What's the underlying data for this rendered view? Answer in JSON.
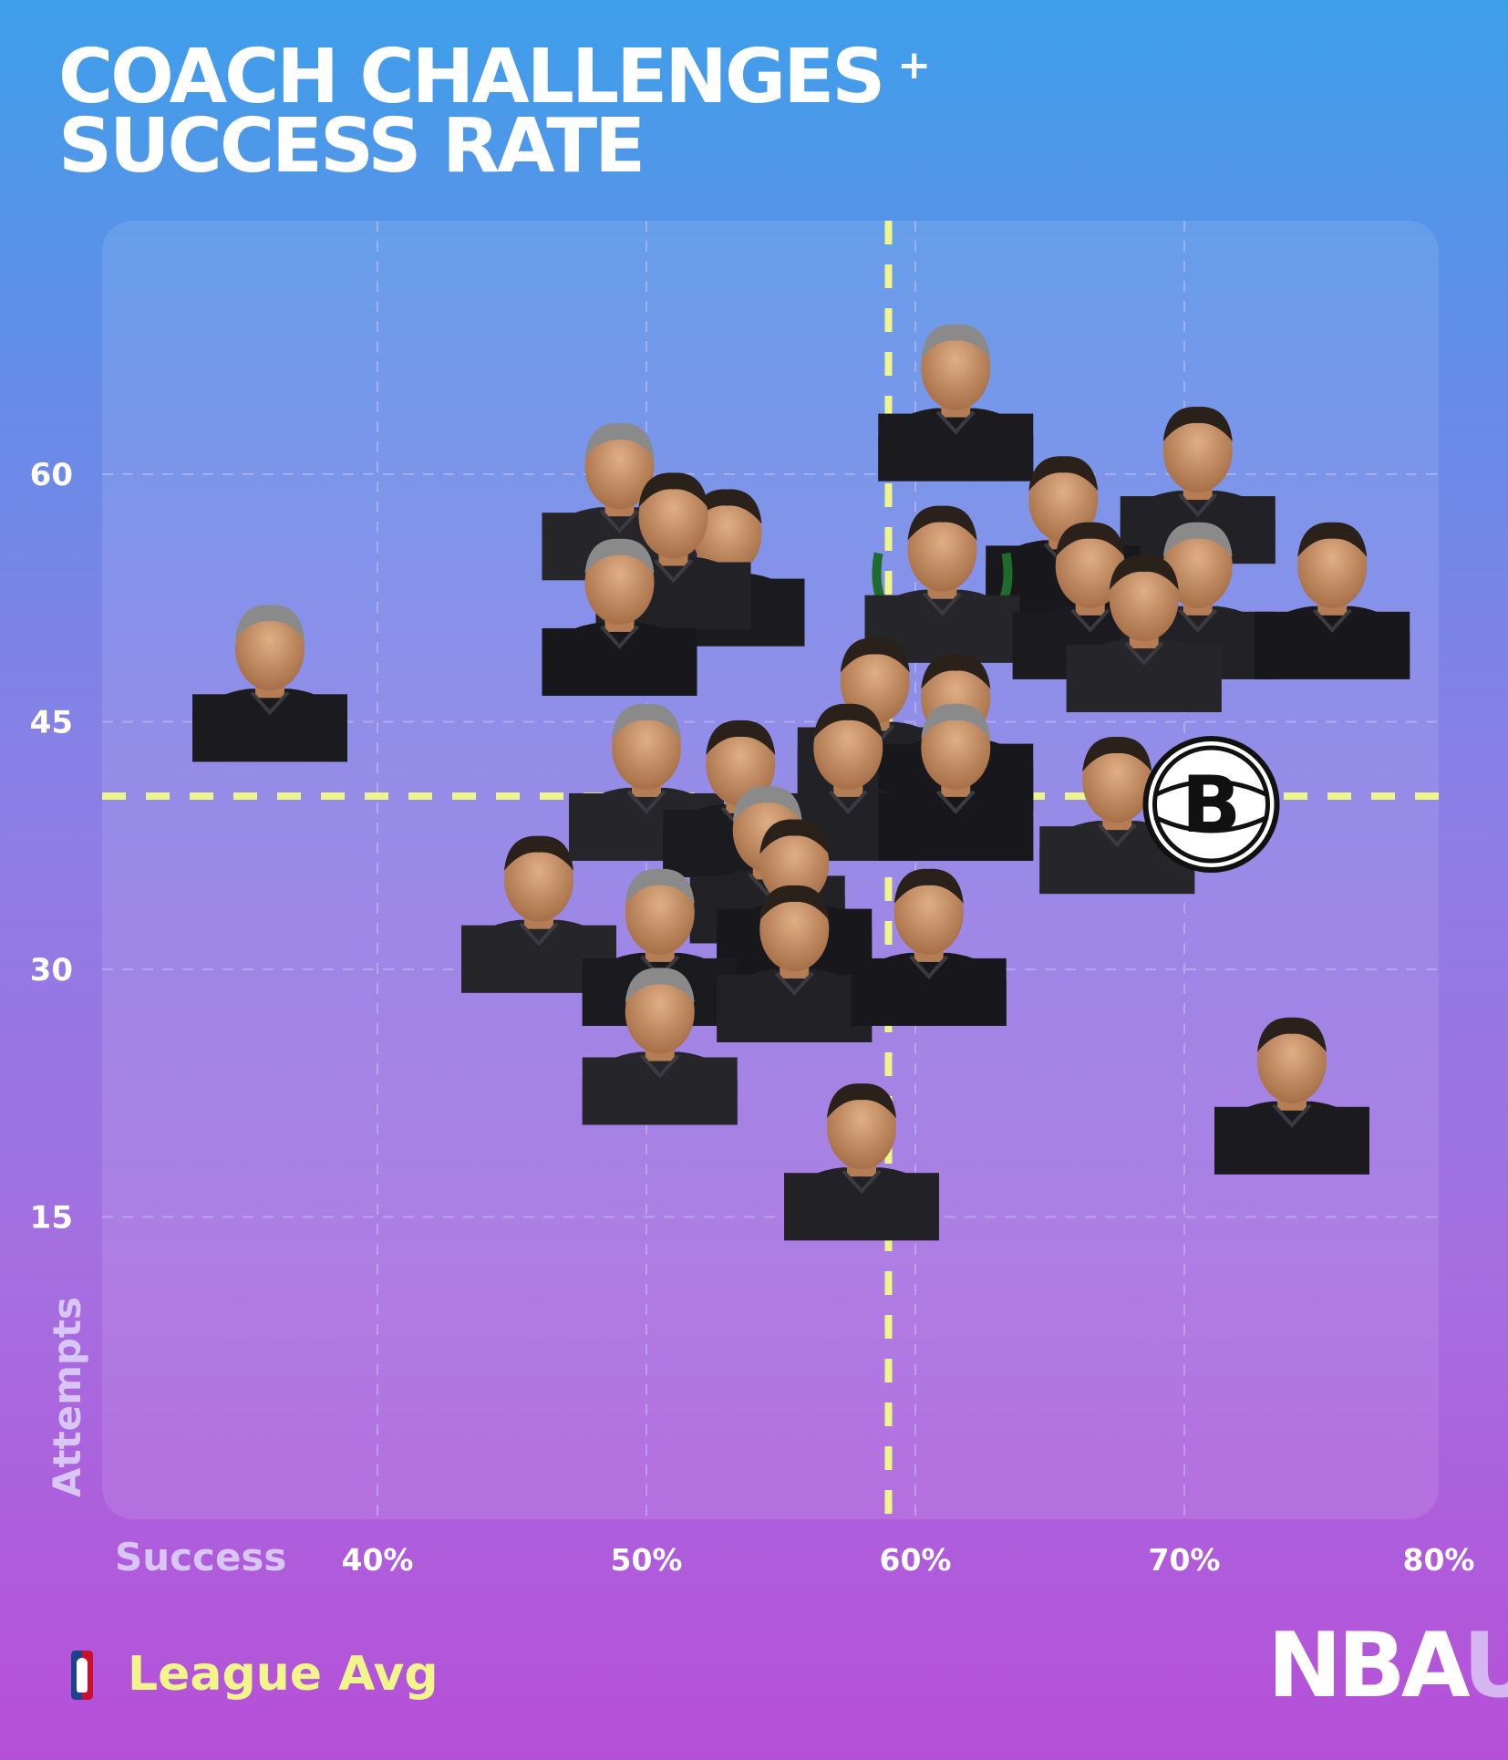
{
  "title": {
    "line1": "COACH CHALLENGES",
    "plus": "+",
    "line2": "SUCCESS RATE"
  },
  "footer": {
    "league_avg_label": "League Avg",
    "brand_main": "NBA",
    "brand_accent": "U"
  },
  "colors": {
    "league_avg_line": "#eef58a",
    "grid": "#c9c2f2",
    "text": "#ffffff",
    "axis_label": "#d8c6f5"
  },
  "chart_data": {
    "type": "scatter",
    "title": "COACH CHALLENGES + SUCCESS RATE",
    "xlabel": "Success",
    "ylabel": "Attempts",
    "x_ticks": [
      "40%",
      "50%",
      "60%",
      "70%",
      "80%"
    ],
    "x_tick_values": [
      0.4,
      0.5,
      0.6,
      0.7,
      0.8
    ],
    "y_ticks": [
      "60",
      "45",
      "30",
      "15"
    ],
    "y_tick_values": [
      60,
      45,
      30,
      15
    ],
    "xlim": [
      0.3,
      0.82
    ],
    "ylim": [
      0,
      75
    ],
    "grid": true,
    "league_avg": {
      "x": 0.59,
      "y": 40.5
    },
    "points": [
      {
        "x": 0.615,
        "y": 64,
        "marker": "coach-headshot"
      },
      {
        "x": 0.705,
        "y": 59,
        "marker": "coach-headshot"
      },
      {
        "x": 0.655,
        "y": 56,
        "marker": "coach-headshot"
      },
      {
        "x": 0.49,
        "y": 58,
        "marker": "coach-headshot"
      },
      {
        "x": 0.53,
        "y": 54,
        "marker": "coach-headshot"
      },
      {
        "x": 0.51,
        "y": 55,
        "marker": "coach-headshot"
      },
      {
        "x": 0.49,
        "y": 51,
        "marker": "coach-headshot"
      },
      {
        "x": 0.61,
        "y": 53,
        "marker": "bucks-coach-headshot"
      },
      {
        "x": 0.665,
        "y": 52,
        "marker": "coach-headshot"
      },
      {
        "x": 0.705,
        "y": 52,
        "marker": "coach-headshot"
      },
      {
        "x": 0.755,
        "y": 52,
        "marker": "coach-headshot"
      },
      {
        "x": 0.685,
        "y": 50,
        "marker": "coach-headshot"
      },
      {
        "x": 0.36,
        "y": 47,
        "marker": "coach-headshot"
      },
      {
        "x": 0.585,
        "y": 45,
        "marker": "coach-headshot"
      },
      {
        "x": 0.615,
        "y": 44,
        "marker": "coach-headshot"
      },
      {
        "x": 0.5,
        "y": 41,
        "marker": "coach-headshot"
      },
      {
        "x": 0.535,
        "y": 40,
        "marker": "coach-headshot"
      },
      {
        "x": 0.575,
        "y": 41,
        "marker": "coach-headshot"
      },
      {
        "x": 0.615,
        "y": 41,
        "marker": "hornets-coach-headshot"
      },
      {
        "x": 0.675,
        "y": 39,
        "marker": "coach-headshot"
      },
      {
        "x": 0.71,
        "y": 40,
        "marker": "nets-logo"
      },
      {
        "x": 0.545,
        "y": 36,
        "marker": "coach-headshot"
      },
      {
        "x": 0.555,
        "y": 34,
        "marker": "coach-headshot"
      },
      {
        "x": 0.46,
        "y": 33,
        "marker": "coach-headshot"
      },
      {
        "x": 0.505,
        "y": 31,
        "marker": "coach-headshot"
      },
      {
        "x": 0.555,
        "y": 30,
        "marker": "wizards-coach-headshot"
      },
      {
        "x": 0.605,
        "y": 31,
        "marker": "pacers-coach-headshot"
      },
      {
        "x": 0.505,
        "y": 25,
        "marker": "coach-headshot"
      },
      {
        "x": 0.74,
        "y": 22,
        "marker": "coach-headshot"
      },
      {
        "x": 0.58,
        "y": 18,
        "marker": "coach-headshot"
      }
    ]
  }
}
